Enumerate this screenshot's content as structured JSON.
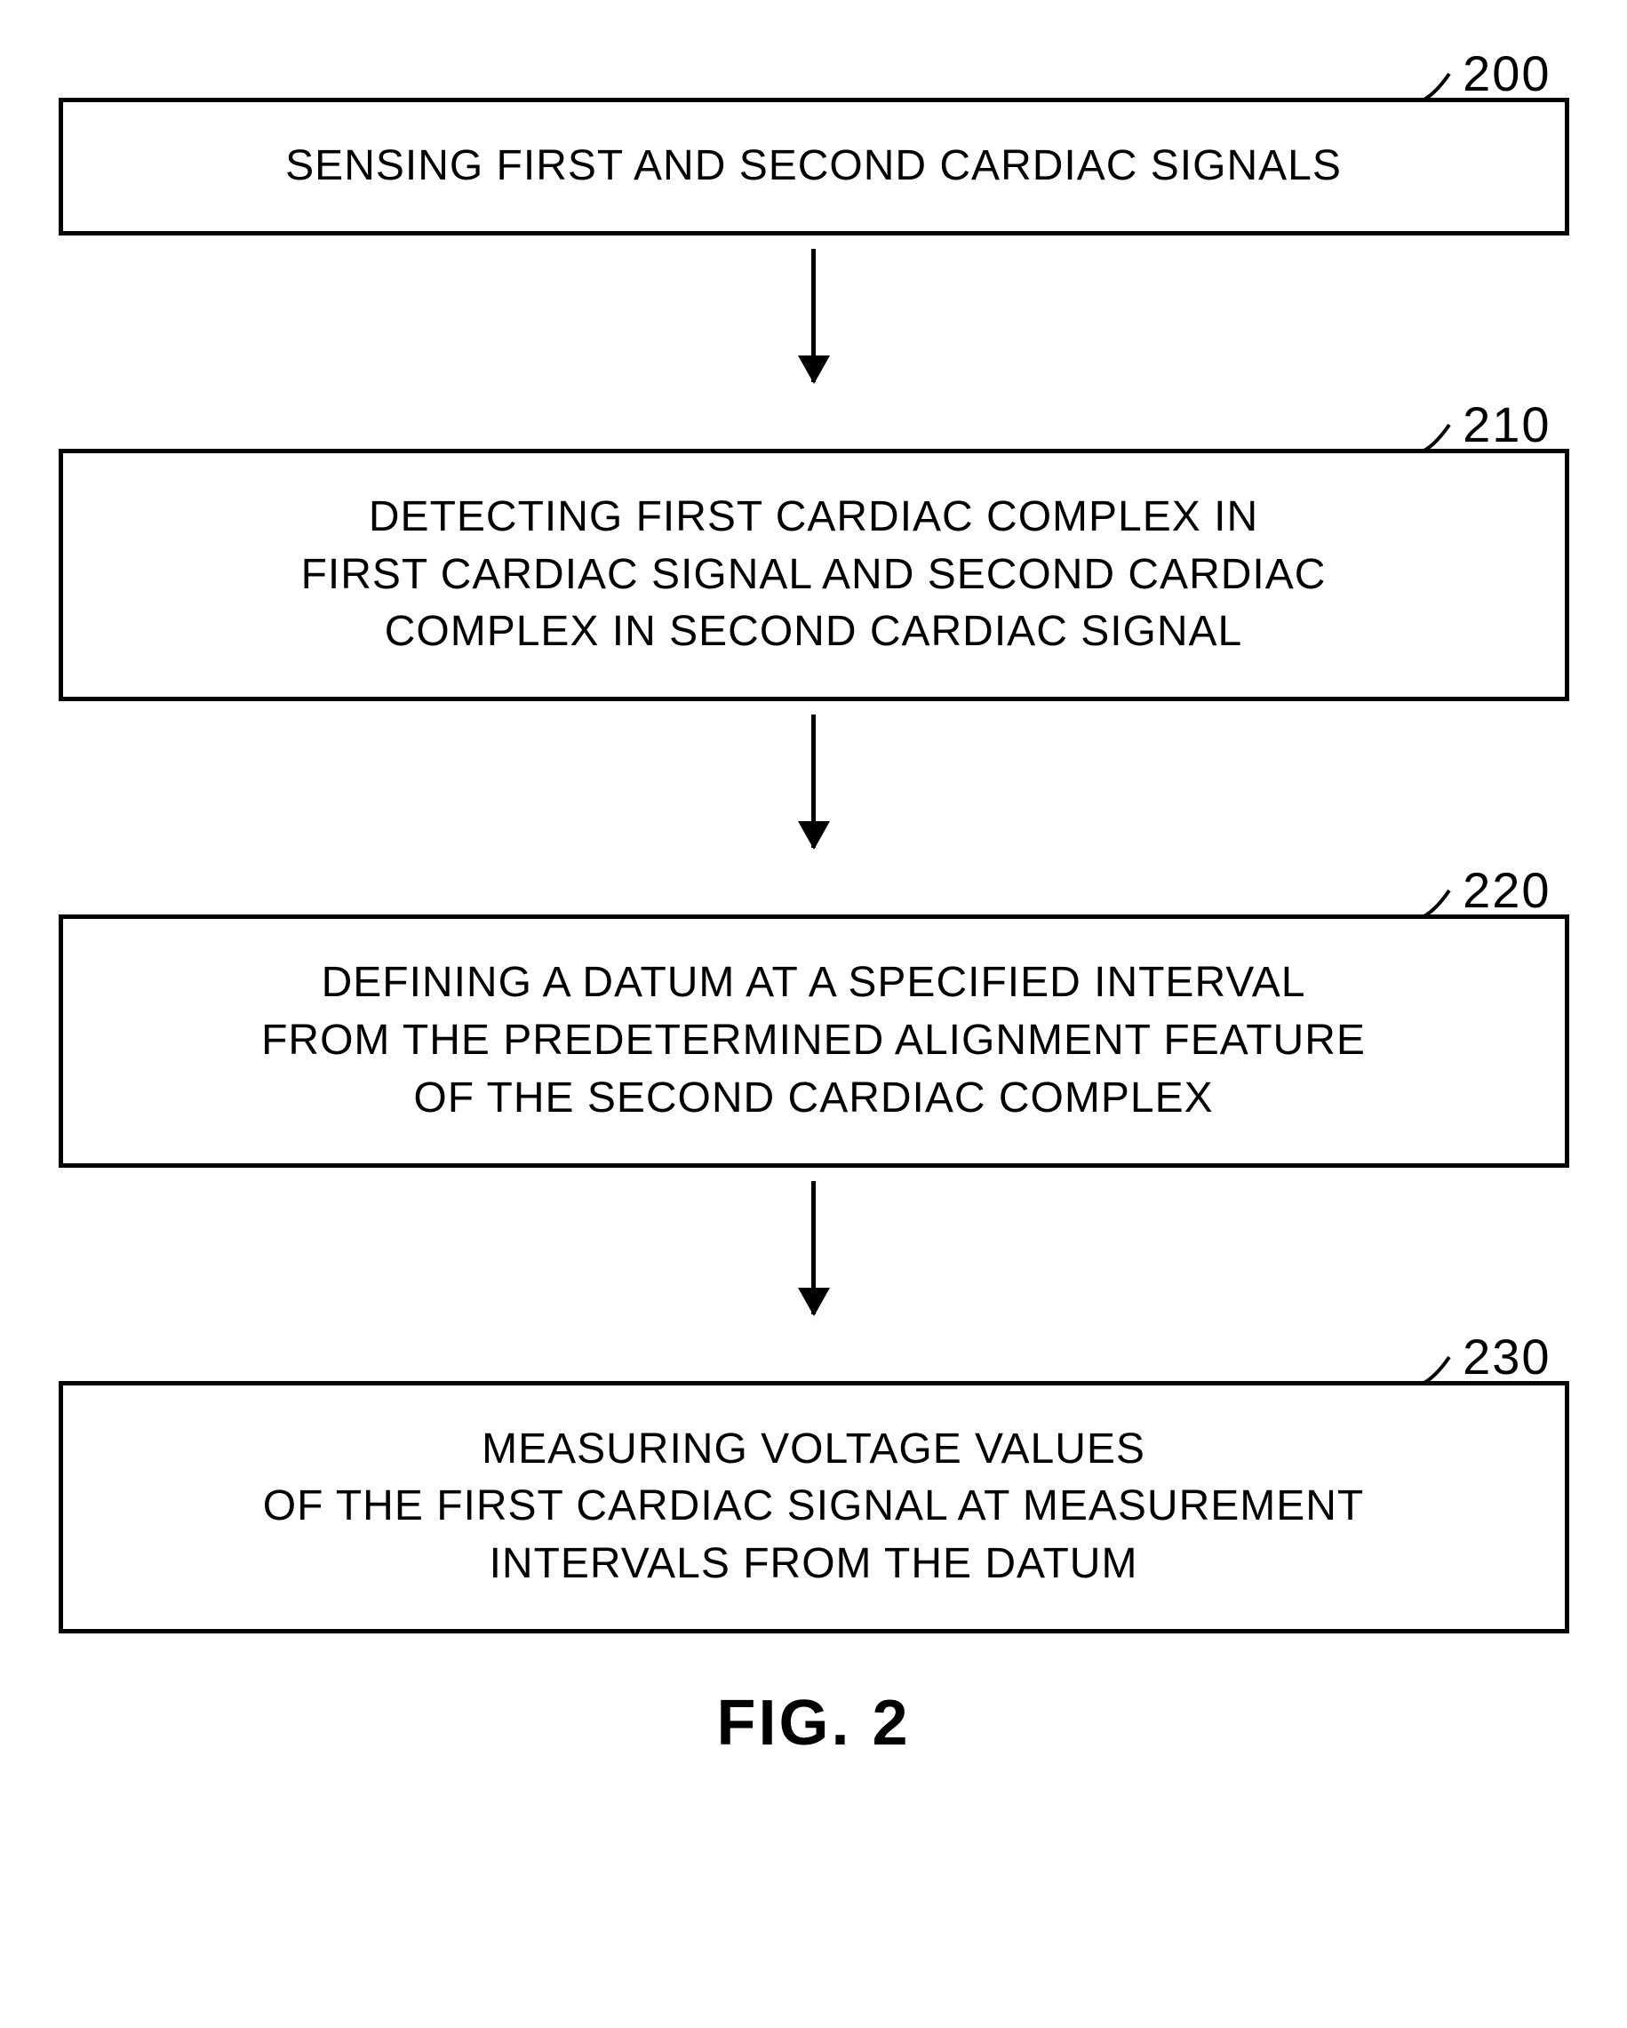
{
  "flowchart": {
    "type": "flowchart",
    "direction": "vertical",
    "background_color": "#ffffff",
    "box_border_color": "#000000",
    "box_border_width": 5,
    "arrow_color": "#000000",
    "arrow_line_width": 5,
    "arrow_head_width": 36,
    "arrow_head_height": 32,
    "text_color": "#000000",
    "box_font_size": 48,
    "label_font_size": 56,
    "fig_font_size": 72,
    "nodes": [
      {
        "id": "200",
        "ref_number": "200",
        "text": "SENSING FIRST AND SECOND CARDIAC SIGNALS"
      },
      {
        "id": "210",
        "ref_number": "210",
        "text": "DETECTING FIRST CARDIAC COMPLEX IN\nFIRST CARDIAC SIGNAL AND SECOND CARDIAC\nCOMPLEX IN SECOND CARDIAC SIGNAL"
      },
      {
        "id": "220",
        "ref_number": "220",
        "text": "DEFINING A DATUM AT A SPECIFIED INTERVAL\nFROM THE PREDETERMINED ALIGNMENT FEATURE\nOF THE SECOND CARDIAC COMPLEX"
      },
      {
        "id": "230",
        "ref_number": "230",
        "text": "MEASURING VOLTAGE VALUES\nOF THE FIRST CARDIAC SIGNAL AT MEASUREMENT\nINTERVALS FROM THE DATUM"
      }
    ],
    "edges": [
      {
        "from": "200",
        "to": "210"
      },
      {
        "from": "210",
        "to": "220"
      },
      {
        "from": "220",
        "to": "230"
      }
    ],
    "figure_label": "FIG. 2"
  }
}
